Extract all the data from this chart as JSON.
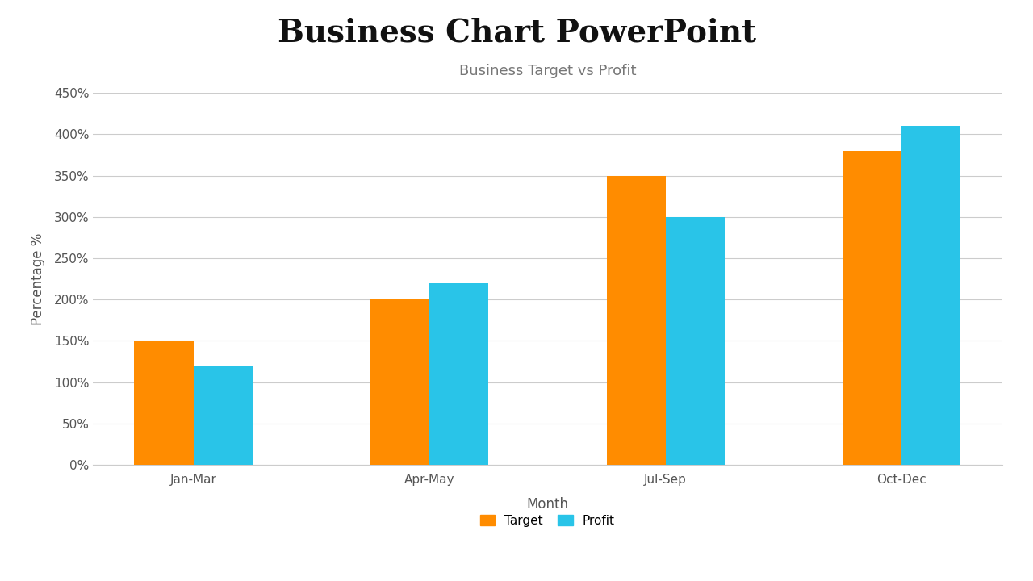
{
  "title": "Business Chart PowerPoint",
  "subtitle": "Business Target vs Profit",
  "categories": [
    "Jan-Mar",
    "Apr-May",
    "Jul-Sep",
    "Oct-Dec"
  ],
  "target_values": [
    150,
    200,
    350,
    380
  ],
  "profit_values": [
    120,
    220,
    300,
    410
  ],
  "target_color": "#FF8C00",
  "profit_color": "#29C4E8",
  "xlabel": "Month",
  "ylabel": "Percentage %",
  "ylim": [
    0,
    450
  ],
  "yticks": [
    0,
    50,
    100,
    150,
    200,
    250,
    300,
    350,
    400,
    450
  ],
  "ytick_labels": [
    "0%",
    "50%",
    "100%",
    "150%",
    "200%",
    "250%",
    "300%",
    "350%",
    "400%",
    "450%"
  ],
  "background_color": "#ffffff",
  "grid_color": "#cccccc",
  "title_fontsize": 28,
  "subtitle_fontsize": 13,
  "axis_label_fontsize": 12,
  "tick_fontsize": 11,
  "legend_fontsize": 11,
  "bar_width": 0.25
}
